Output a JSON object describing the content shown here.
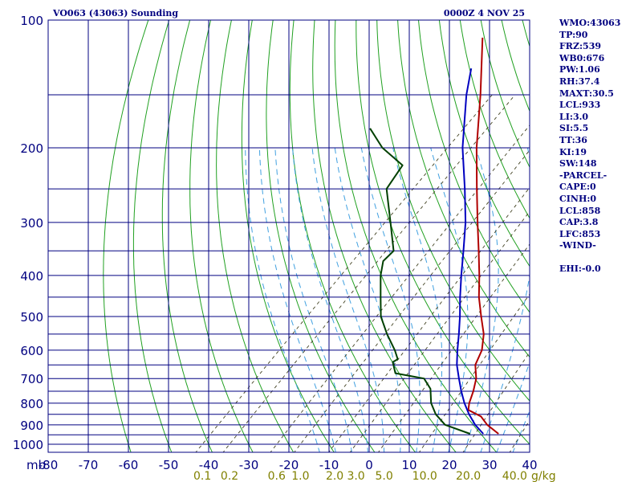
{
  "header": {
    "left_title": "VO063 (43063) Sounding",
    "right_title": "0000Z  4 NOV 25"
  },
  "sidebar": {
    "lines": [
      "WMO:43063",
      "TP:90",
      "FRZ:539",
      "WB0:676",
      "PW:1.06",
      "RH:37.4",
      "MAXT:30.5",
      "LCL:933",
      "LI:3.0",
      "SI:5.5",
      "TT:36",
      "KI:19",
      "SW:148",
      "-PARCEL-",
      "CAPE:0",
      "CINH:0",
      "LCL:858",
      "CAP:3.8",
      "LFC:853",
      "-WIND-",
      "",
      "EHI:-0.0"
    ]
  },
  "chart_data": {
    "type": "line",
    "title": "VO063 (43063) Sounding",
    "x_axis": {
      "label": "mb",
      "ticks": [
        -80,
        -70,
        -60,
        -50,
        -40,
        -30,
        -20,
        -10,
        0,
        10,
        20,
        30,
        40
      ],
      "tick_labels": [
        "-80",
        "-70",
        "-60",
        "-50",
        "-40",
        "-30",
        "-20",
        "-10",
        "0",
        "10",
        "20",
        "30",
        "40"
      ],
      "range": [
        -80,
        40
      ],
      "skewed": true
    },
    "y_axis": {
      "ticks": [
        100,
        200,
        300,
        400,
        500,
        600,
        700,
        800,
        900,
        1000
      ],
      "range": [
        100,
        1050
      ],
      "scale": "log",
      "inverted": true
    },
    "mixing_ratio_axis": {
      "labels": [
        "0.1",
        "0.2",
        "0.6",
        "1.0",
        "2.0",
        "3.0",
        "5.0",
        "10.0",
        "20.0",
        "40.0"
      ],
      "unit": "g/kg",
      "values": [
        0.1,
        0.2,
        0.6,
        1.0,
        2.0,
        3.0,
        5.0,
        10.0,
        20.0,
        40.0
      ]
    },
    "grid": true,
    "series": [
      {
        "color": "#b00000",
        "points": [
          [
            945,
            29.6
          ],
          [
            900,
            24.5
          ],
          [
            860,
            20.8
          ],
          [
            830,
            16.0
          ],
          [
            800,
            14.5
          ],
          [
            750,
            12.5
          ],
          [
            700,
            10.0
          ],
          [
            650,
            6.3
          ],
          [
            600,
            4.2
          ],
          [
            550,
            0.6
          ],
          [
            500,
            -4.5
          ],
          [
            450,
            -10.0
          ],
          [
            400,
            -15.4
          ],
          [
            350,
            -21.8
          ],
          [
            300,
            -29.3
          ],
          [
            250,
            -38.0
          ],
          [
            200,
            -48.5
          ],
          [
            150,
            -61.0
          ],
          [
            110,
            -75.0
          ]
        ]
      },
      {
        "color": "#0000c0",
        "points": [
          [
            945,
            25.8
          ],
          [
            900,
            21.5
          ],
          [
            850,
            17.3
          ],
          [
            800,
            13.3
          ],
          [
            750,
            9.5
          ],
          [
            700,
            5.7
          ],
          [
            650,
            1.7
          ],
          [
            600,
            -1.9
          ],
          [
            550,
            -5.6
          ],
          [
            500,
            -9.8
          ],
          [
            450,
            -14.7
          ],
          [
            400,
            -19.9
          ],
          [
            350,
            -25.6
          ],
          [
            300,
            -32.3
          ],
          [
            250,
            -41.0
          ],
          [
            200,
            -52.0
          ],
          [
            150,
            -64.5
          ],
          [
            130,
            -70.0
          ]
        ]
      },
      {
        "color": "#004000",
        "points": [
          [
            945,
            22.5
          ],
          [
            900,
            14.0
          ],
          [
            850,
            9.0
          ],
          [
            800,
            5.0
          ],
          [
            740,
            1.2
          ],
          [
            700,
            -3.0
          ],
          [
            680,
            -11.5
          ],
          [
            640,
            -15.0
          ],
          [
            630,
            -14.5
          ],
          [
            600,
            -17.5
          ],
          [
            550,
            -23.5
          ],
          [
            500,
            -29.5
          ],
          [
            450,
            -34.5
          ],
          [
            400,
            -40.0
          ],
          [
            370,
            -43.0
          ],
          [
            350,
            -43.0
          ],
          [
            300,
            -51.0
          ],
          [
            250,
            -60.5
          ],
          [
            220,
            -62.5
          ],
          [
            200,
            -72.0
          ],
          [
            180,
            -80.0
          ]
        ]
      }
    ]
  }
}
